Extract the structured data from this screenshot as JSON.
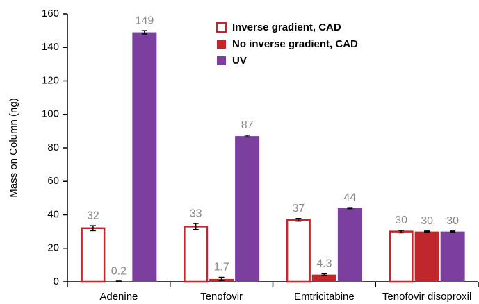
{
  "chart_data": {
    "type": "bar",
    "y_label": "Mass on Column (ng)",
    "categories": [
      "Adenine",
      "Tenofovir",
      "Emtricitabine",
      "Tenofovir disoproxil"
    ],
    "series": [
      {
        "name": "Inverse gradient, CAD",
        "color": "#c0272d",
        "outline": true,
        "values": [
          32,
          33,
          37,
          30
        ],
        "errors": [
          1.5,
          1.8,
          0.8,
          0.8
        ]
      },
      {
        "name": "No inverse gradient, CAD",
        "color": "#c0272d",
        "values": [
          0.2,
          1.7,
          4.3,
          30
        ],
        "errors": [
          0.2,
          1,
          0.5,
          0.3
        ]
      },
      {
        "name": "UV",
        "color": "#7b3f9e",
        "values": [
          149,
          87,
          44,
          30
        ],
        "errors": [
          1,
          0.5,
          0.3,
          0.3
        ]
      }
    ],
    "ylim": [
      0,
      160
    ],
    "yticks": [
      0,
      20,
      40,
      60,
      80,
      100,
      120,
      140,
      160
    ],
    "grid": false,
    "legend": "top"
  }
}
